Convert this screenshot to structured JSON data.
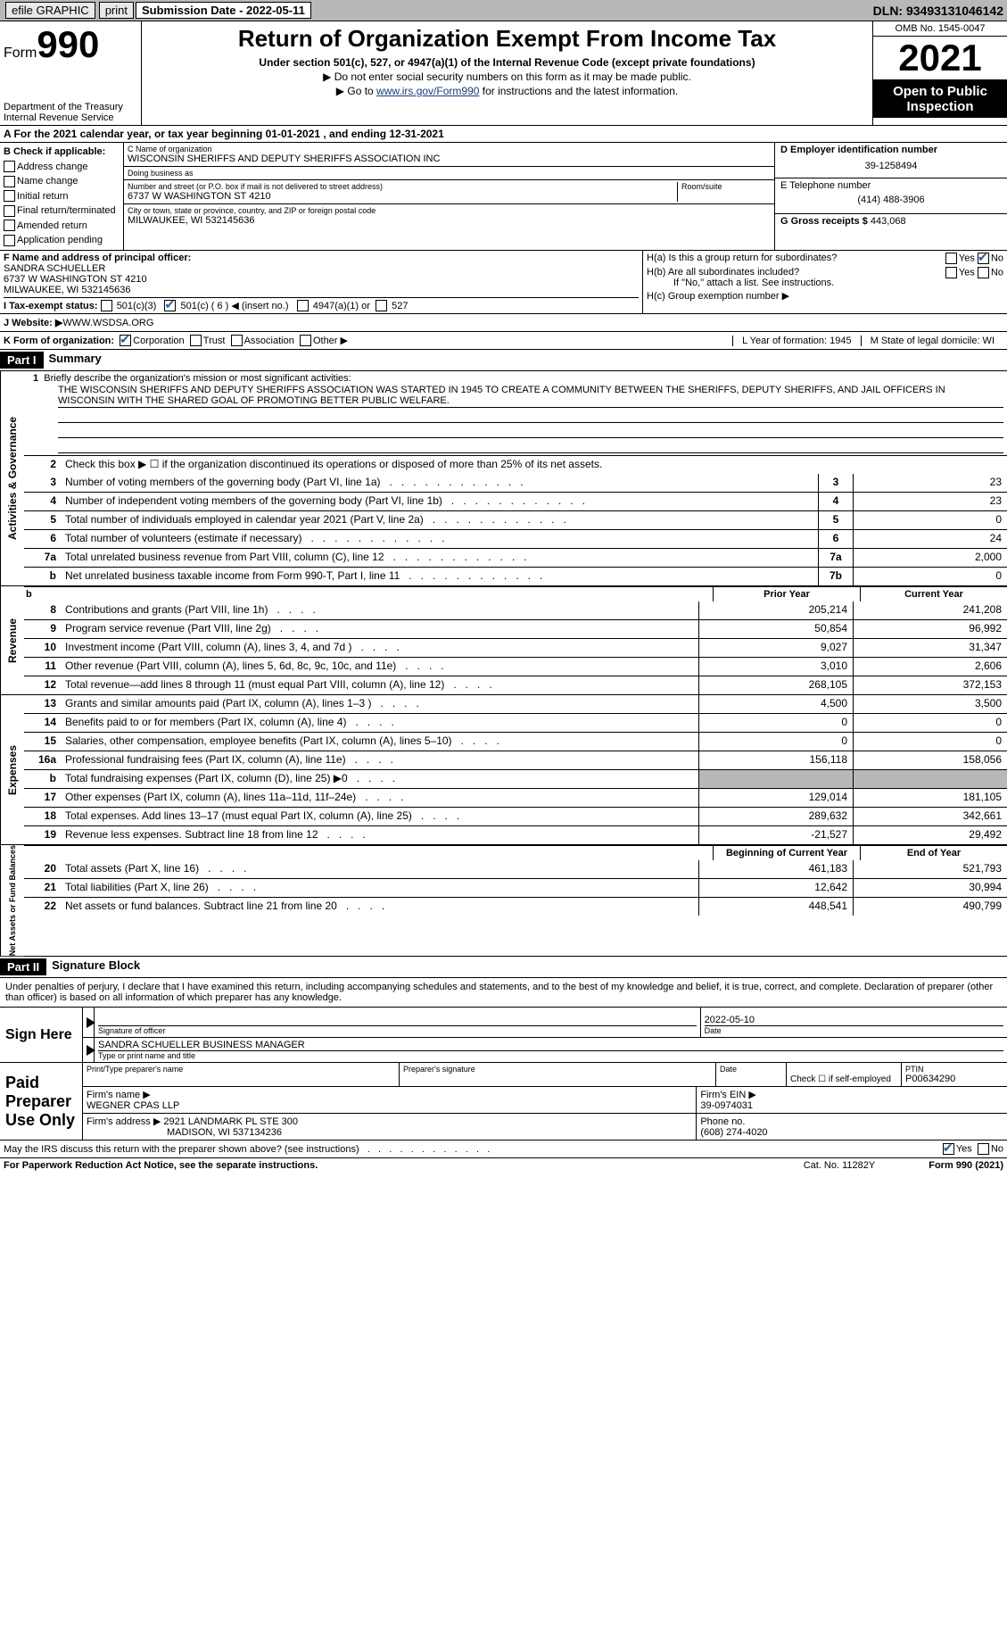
{
  "colors": {
    "header_bg": "#b8b8b8",
    "black": "#000000",
    "white": "#ffffff",
    "link": "#1a3a7a",
    "check": "#2a5a9a"
  },
  "topbar": {
    "efile": "efile GRAPHIC",
    "print": "print",
    "submission_label": "Submission Date - 2022-05-11",
    "dln": "DLN: 93493131046142"
  },
  "header": {
    "form_word": "Form",
    "form_num": "990",
    "dept": "Department of the Treasury Internal Revenue Service",
    "title": "Return of Organization Exempt From Income Tax",
    "sub": "Under section 501(c), 527, or 4947(a)(1) of the Internal Revenue Code (except private foundations)",
    "note1": "▶ Do not enter social security numbers on this form as it may be made public.",
    "note2_pre": "▶ Go to ",
    "note2_link": "www.irs.gov/Form990",
    "note2_post": " for instructions and the latest information.",
    "omb": "OMB No. 1545-0047",
    "year": "2021",
    "open1": "Open to Public",
    "open2": "Inspection"
  },
  "row_a": "A For the 2021 calendar year, or tax year beginning 01-01-2021     , and ending 12-31-2021",
  "col_b": {
    "title": "B Check if applicable:",
    "items": [
      "Address change",
      "Name change",
      "Initial return",
      "Final return/terminated",
      "Amended return",
      "Application pending"
    ]
  },
  "col_c": {
    "name_label": "C Name of organization",
    "name": "WISCONSIN SHERIFFS AND DEPUTY SHERIFFS ASSOCIATION INC",
    "dba_label": "Doing business as",
    "dba": "",
    "street_label": "Number and street (or P.O. box if mail is not delivered to street address)",
    "room_label": "Room/suite",
    "street": "6737 W WASHINGTON ST 4210",
    "city_label": "City or town, state or province, country, and ZIP or foreign postal code",
    "city": "MILWAUKEE, WI  532145636"
  },
  "col_d": {
    "ein_label": "D Employer identification number",
    "ein": "39-1258494",
    "tel_label": "E Telephone number",
    "tel": "(414) 488-3906",
    "gross_label": "G Gross receipts $ ",
    "gross": "443,068"
  },
  "fgh": {
    "f_label": "F Name and address of principal officer:",
    "f_name": "SANDRA SCHUELLER",
    "f_addr1": "6737 W WASHINGTON ST 4210",
    "f_addr2": "MILWAUKEE, WI  532145636",
    "ha": "H(a)  Is this a group return for subordinates?",
    "hb": "H(b)  Are all subordinates included?",
    "hb_note": "If \"No,\" attach a list. See instructions.",
    "hc": "H(c)  Group exemption number ▶",
    "yes": "Yes",
    "no": "No"
  },
  "row_i": {
    "label": "I   Tax-exempt status:",
    "o1": "501(c)(3)",
    "o2": "501(c) ( 6 ) ◀ (insert no.)",
    "o3": "4947(a)(1) or",
    "o4": "527"
  },
  "row_j": {
    "label": "J   Website: ▶",
    "val": "  WWW.WSDSA.ORG"
  },
  "row_k": {
    "label": "K Form of organization:",
    "o1": "Corporation",
    "o2": "Trust",
    "o3": "Association",
    "o4": "Other ▶",
    "l": "L Year of formation: 1945",
    "m": "M State of legal domicile: WI"
  },
  "part1": {
    "header": "Part I",
    "title": "Summary",
    "q1_label": "Briefly describe the organization's mission or most significant activities:",
    "q1_text": "THE WISCONSIN SHERIFFS AND DEPUTY SHERIFFS ASSOCIATION WAS STARTED IN 1945 TO CREATE A COMMUNITY BETWEEN THE SHERIFFS, DEPUTY SHERIFFS, AND JAIL OFFICERS IN WISCONSIN WITH THE SHARED GOAL OF PROMOTING BETTER PUBLIC WELFARE.",
    "q2": "Check this box ▶ ☐ if the organization discontinued its operations or disposed of more than 25% of its net assets.",
    "tabs": {
      "ag": "Activities & Governance",
      "rev": "Revenue",
      "exp": "Expenses",
      "na": "Net Assets or Fund Balances"
    },
    "col_headers": {
      "prior": "Prior Year",
      "current": "Current Year",
      "begin": "Beginning of Current Year",
      "end": "End of Year"
    },
    "rows": [
      {
        "n": "3",
        "label": "Number of voting members of the governing body (Part VI, line 1a)",
        "box": "3",
        "val": "23"
      },
      {
        "n": "4",
        "label": "Number of independent voting members of the governing body (Part VI, line 1b)",
        "box": "4",
        "val": "23"
      },
      {
        "n": "5",
        "label": "Total number of individuals employed in calendar year 2021 (Part V, line 2a)",
        "box": "5",
        "val": "0"
      },
      {
        "n": "6",
        "label": "Total number of volunteers (estimate if necessary)",
        "box": "6",
        "val": "24"
      },
      {
        "n": "7a",
        "label": "Total unrelated business revenue from Part VIII, column (C), line 12",
        "box": "7a",
        "val": "2,000"
      },
      {
        "n": "b",
        "label": "Net unrelated business taxable income from Form 990-T, Part I, line 11",
        "box": "7b",
        "val": "0"
      }
    ],
    "rev_rows": [
      {
        "n": "8",
        "label": "Contributions and grants (Part VIII, line 1h)",
        "p": "205,214",
        "c": "241,208"
      },
      {
        "n": "9",
        "label": "Program service revenue (Part VIII, line 2g)",
        "p": "50,854",
        "c": "96,992"
      },
      {
        "n": "10",
        "label": "Investment income (Part VIII, column (A), lines 3, 4, and 7d )",
        "p": "9,027",
        "c": "31,347"
      },
      {
        "n": "11",
        "label": "Other revenue (Part VIII, column (A), lines 5, 6d, 8c, 9c, 10c, and 11e)",
        "p": "3,010",
        "c": "2,606"
      },
      {
        "n": "12",
        "label": "Total revenue—add lines 8 through 11 (must equal Part VIII, column (A), line 12)",
        "p": "268,105",
        "c": "372,153"
      }
    ],
    "exp_rows": [
      {
        "n": "13",
        "label": "Grants and similar amounts paid (Part IX, column (A), lines 1–3 )",
        "p": "4,500",
        "c": "3,500"
      },
      {
        "n": "14",
        "label": "Benefits paid to or for members (Part IX, column (A), line 4)",
        "p": "0",
        "c": "0"
      },
      {
        "n": "15",
        "label": "Salaries, other compensation, employee benefits (Part IX, column (A), lines 5–10)",
        "p": "0",
        "c": "0"
      },
      {
        "n": "16a",
        "label": "Professional fundraising fees (Part IX, column (A), line 11e)",
        "p": "156,118",
        "c": "158,056"
      },
      {
        "n": "b",
        "label": "Total fundraising expenses (Part IX, column (D), line 25) ▶0",
        "p": "",
        "c": "",
        "shade": true
      },
      {
        "n": "17",
        "label": "Other expenses (Part IX, column (A), lines 11a–11d, 11f–24e)",
        "p": "129,014",
        "c": "181,105"
      },
      {
        "n": "18",
        "label": "Total expenses. Add lines 13–17 (must equal Part IX, column (A), line 25)",
        "p": "289,632",
        "c": "342,661"
      },
      {
        "n": "19",
        "label": "Revenue less expenses. Subtract line 18 from line 12",
        "p": "-21,527",
        "c": "29,492"
      }
    ],
    "na_rows": [
      {
        "n": "20",
        "label": "Total assets (Part X, line 16)",
        "p": "461,183",
        "c": "521,793"
      },
      {
        "n": "21",
        "label": "Total liabilities (Part X, line 26)",
        "p": "12,642",
        "c": "30,994"
      },
      {
        "n": "22",
        "label": "Net assets or fund balances. Subtract line 21 from line 20",
        "p": "448,541",
        "c": "490,799"
      }
    ]
  },
  "part2": {
    "header": "Part II",
    "title": "Signature Block",
    "disclaimer": "Under penalties of perjury, I declare that I have examined this return, including accompanying schedules and statements, and to the best of my knowledge and belief, it is true, correct, and complete. Declaration of preparer (other than officer) is based on all information of which preparer has any knowledge.",
    "sign_here": "Sign Here",
    "sig_officer_label": "Signature of officer",
    "sig_date": "2022-05-10",
    "sig_date_label": "Date",
    "officer_name": "SANDRA SCHUELLER  BUSINESS MANAGER",
    "officer_name_label": "Type or print name and title",
    "paid": "Paid Preparer Use Only",
    "prep_name_label": "Print/Type preparer's name",
    "prep_sig_label": "Preparer's signature",
    "date_label": "Date",
    "check_self": "Check ☐ if self-employed",
    "ptin_label": "PTIN",
    "ptin": "P00634290",
    "firm_name_label": "Firm's name    ▶",
    "firm_name": "WEGNER CPAS LLP",
    "firm_ein_label": "Firm's EIN ▶",
    "firm_ein": "39-0974031",
    "firm_addr_label": "Firm's address ▶",
    "firm_addr1": "2921 LANDMARK PL STE 300",
    "firm_addr2": "MADISON, WI  537134236",
    "firm_phone_label": "Phone no.",
    "firm_phone": "(608) 274-4020",
    "discuss": "May the IRS discuss this return with the preparer shown above? (see instructions)"
  },
  "footer": {
    "left": "For Paperwork Reduction Act Notice, see the separate instructions.",
    "mid": "Cat. No. 11282Y",
    "right": "Form 990 (2021)"
  }
}
